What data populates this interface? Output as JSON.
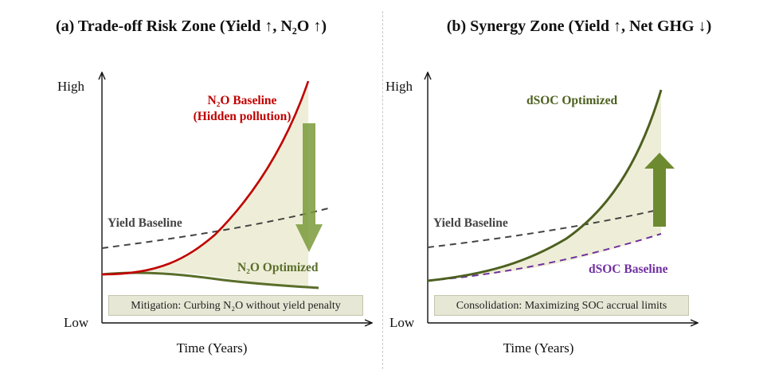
{
  "panel_a": {
    "title": "(a) Trade-off Risk Zone (Yield ↑, N₂O ↑)",
    "y_high": "High",
    "y_low": "Low",
    "x_label": "Time (Years)",
    "curve_top_label_line1": "N₂O Baseline",
    "curve_top_label_line2": "(Hidden pollution)",
    "yield_label": "Yield Baseline",
    "curve_bottom_label": "N₂O Optimized",
    "caption": "Mitigation: Curbing N₂O without yield penalty",
    "arrow_direction": "down"
  },
  "panel_b": {
    "title": "(b) Synergy Zone (Yield ↑, Net GHG ↓)",
    "y_high": "High",
    "y_low": "Low",
    "x_label": "Time (Years)",
    "curve_top_label": "dSOC Optimized",
    "yield_label": "Yield Baseline",
    "curve_bottom_label": "dSOC Baseline",
    "caption": "Consolidation: Maximizing SOC accrual limits",
    "arrow_direction": "up"
  },
  "colors": {
    "n2o_baseline": "#c00000",
    "optimized_green": "#5a6e2a",
    "dsoc_green": "#4d6020",
    "yield_dashed": "#444444",
    "dsoc_baseline": "#7030a0",
    "fill_zone": "#eeeed8",
    "arrow_green": "#7a9a3a"
  }
}
